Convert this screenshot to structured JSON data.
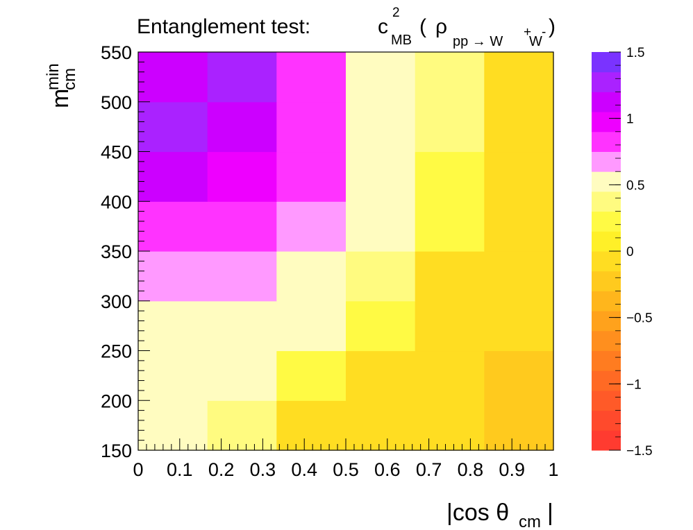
{
  "chart_data": {
    "type": "heatmap",
    "title": {
      "prefix": "Entanglement test:",
      "symbol": "c",
      "superscript": "2",
      "subscript": "MB",
      "open": "(",
      "rho": "ρ",
      "process": "pp → W",
      "w_plus": "+",
      "w": "W",
      "w_minus": "-",
      "close": ")"
    },
    "xlabel": {
      "main": "|cos θ",
      "sub": "cm",
      "end": "|"
    },
    "ylabel": {
      "main": "m",
      "sub": "cm",
      "sup": "min"
    },
    "x_edges": [
      0,
      0.1667,
      0.3333,
      0.5,
      0.6667,
      0.8333,
      1.0
    ],
    "y_edges": [
      150,
      200,
      250,
      300,
      350,
      400,
      450,
      500,
      550
    ],
    "xlim": [
      0,
      1
    ],
    "ylim": [
      150,
      550
    ],
    "zlim": [
      -1.5,
      1.5
    ],
    "x_ticks": [
      "0",
      "0.1",
      "0.2",
      "0.3",
      "0.4",
      "0.5",
      "0.6",
      "0.7",
      "0.8",
      "0.9",
      "1"
    ],
    "y_ticks": [
      "150",
      "200",
      "250",
      "300",
      "350",
      "400",
      "450",
      "500",
      "550"
    ],
    "z_ticks": [
      "1.5",
      "1",
      "0.5",
      "0",
      "−0.5",
      "−1",
      "−1.5"
    ],
    "values": [
      [
        0.45,
        0.4,
        -0.02,
        -0.12,
        -0.12,
        -0.25
      ],
      [
        0.5,
        0.5,
        0.2,
        -0.02,
        -0.12,
        -0.22
      ],
      [
        0.58,
        0.52,
        0.5,
        0.2,
        -0.02,
        -0.12
      ],
      [
        0.65,
        0.6,
        0.52,
        0.42,
        -0.02,
        -0.12
      ],
      [
        0.9,
        0.85,
        0.62,
        0.52,
        0.2,
        -0.12
      ],
      [
        1.1,
        1.0,
        0.8,
        0.55,
        0.2,
        -0.12
      ],
      [
        1.25,
        1.15,
        0.85,
        0.58,
        0.38,
        -0.12
      ],
      [
        1.05,
        1.28,
        0.82,
        0.58,
        0.4,
        -0.12
      ]
    ]
  }
}
